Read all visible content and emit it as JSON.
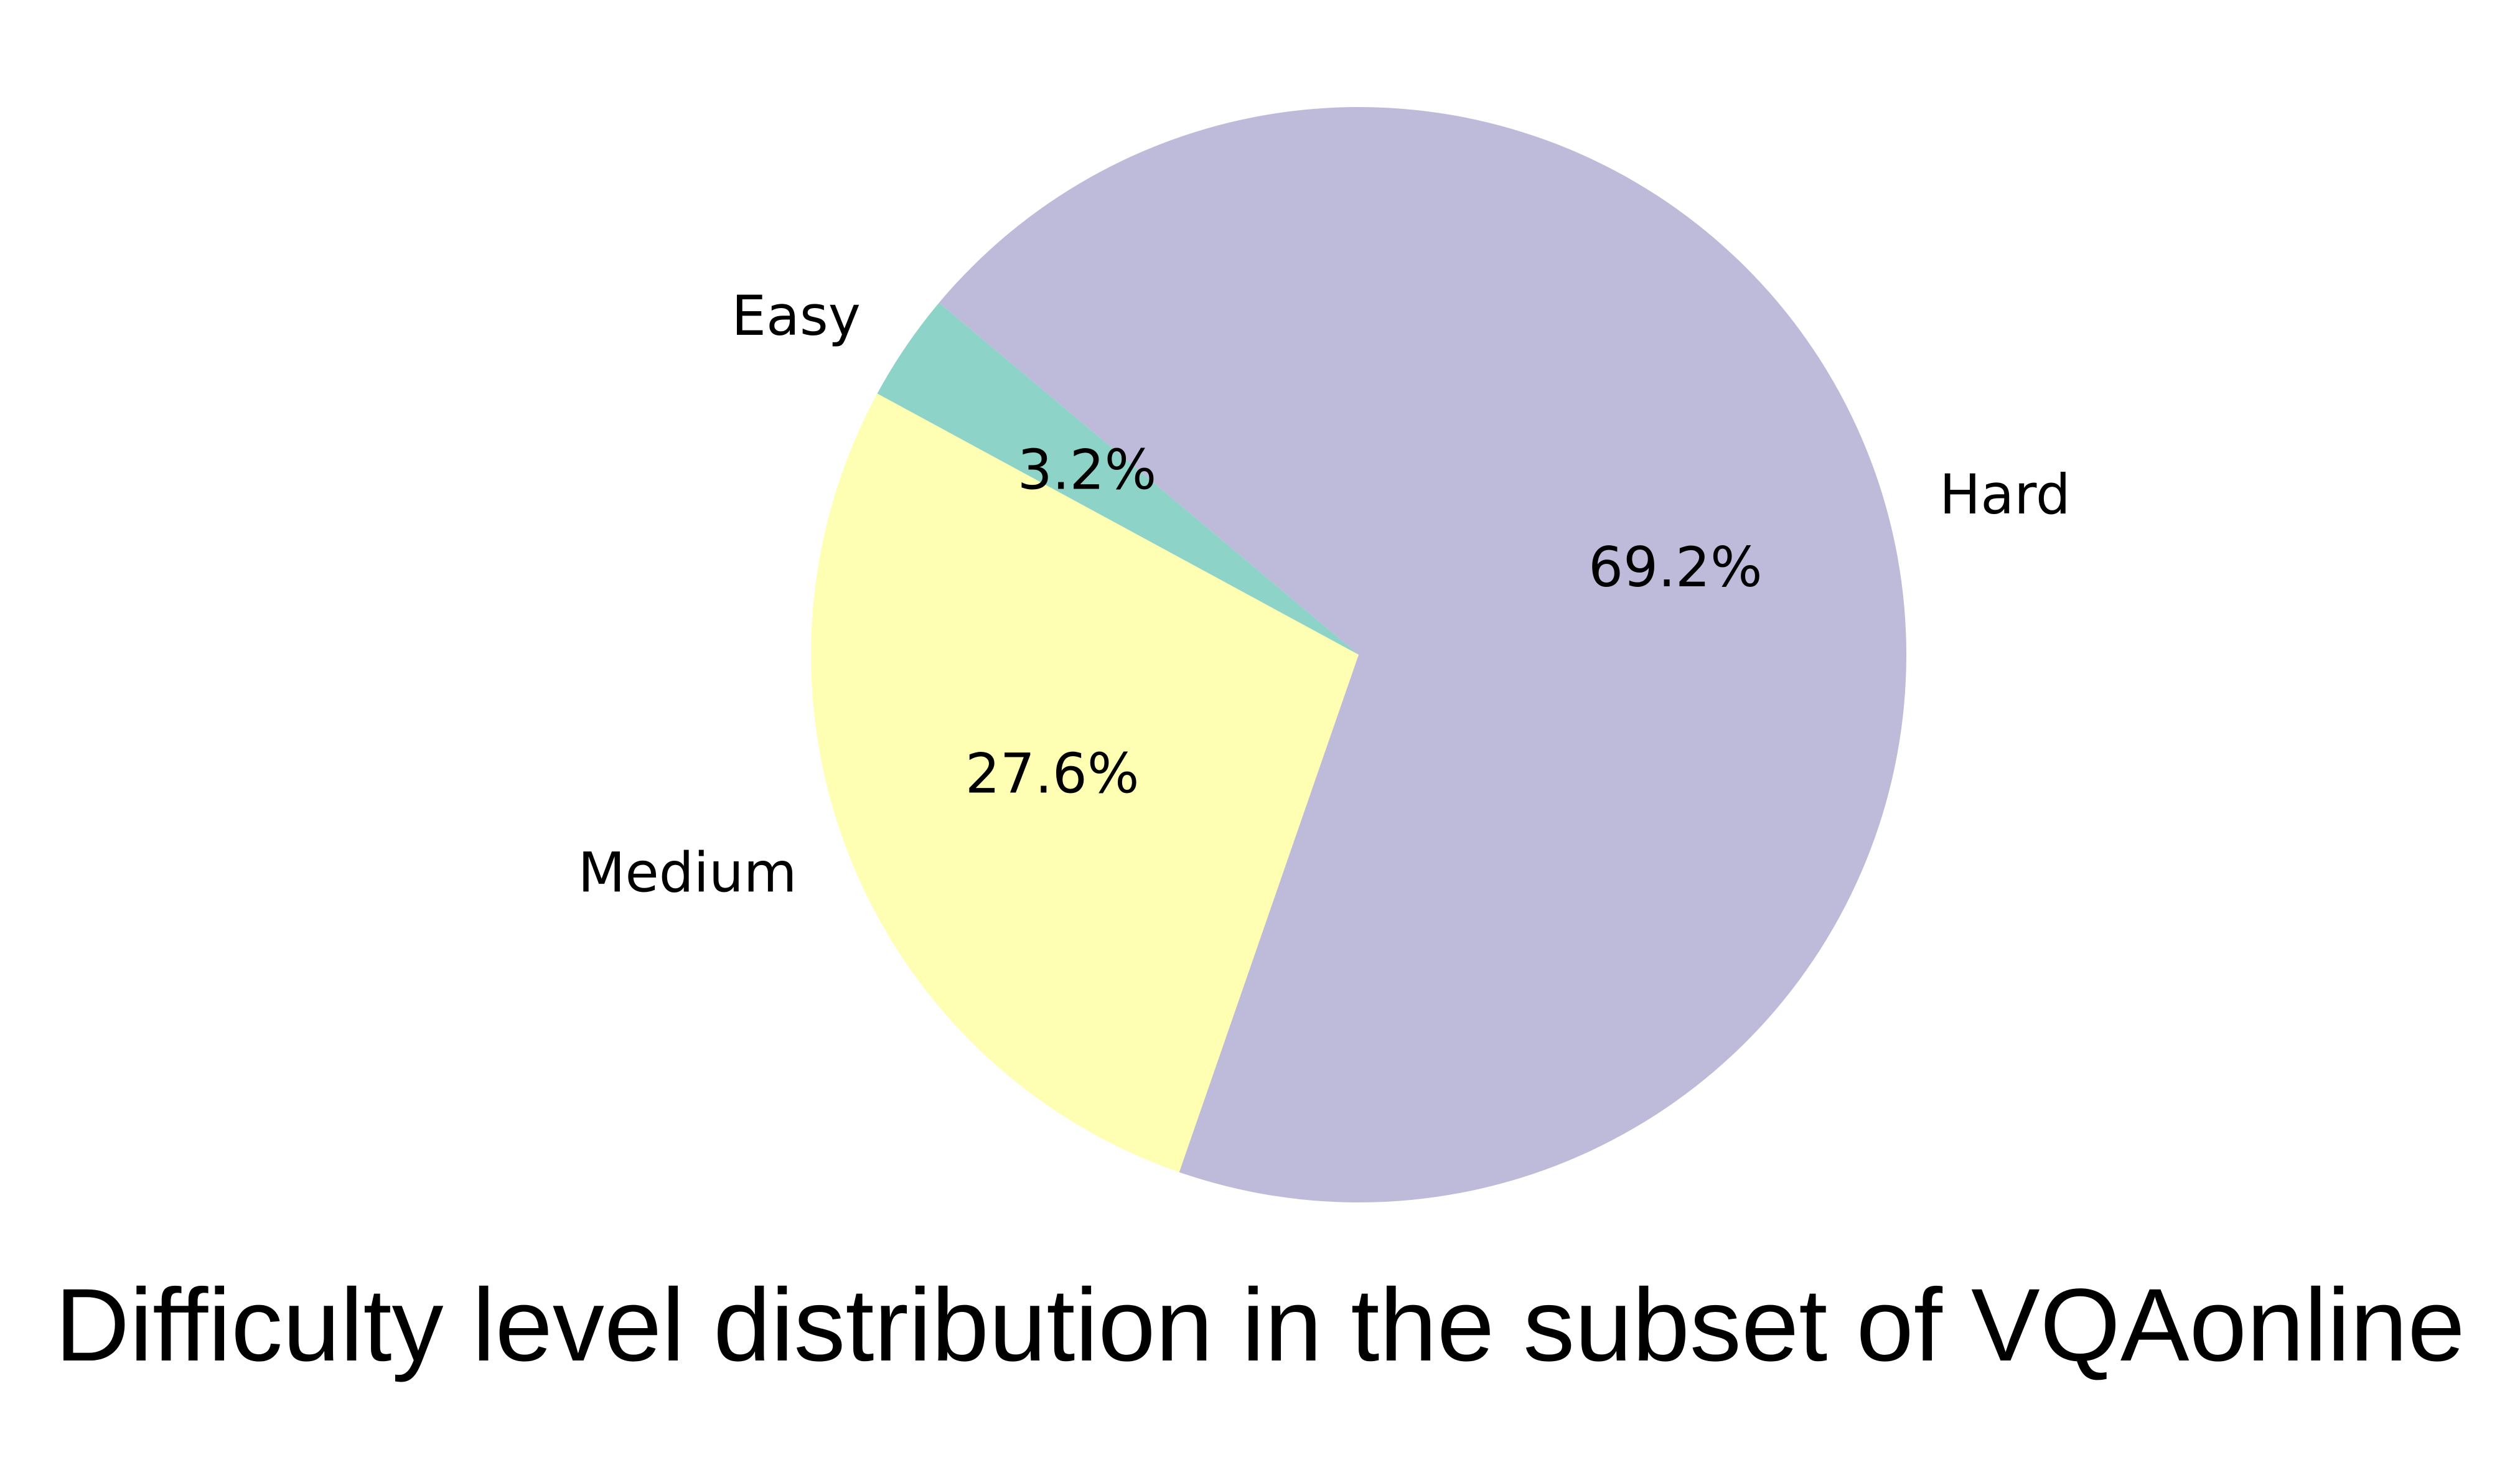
{
  "chart_data": {
    "type": "pie",
    "title": "Difficulty level distribution in the subset of VQAonline",
    "slices": [
      {
        "label": "Easy",
        "value": 3.2,
        "pct_label": "3.2%",
        "color": "#8dd3c7"
      },
      {
        "label": "Medium",
        "value": 27.6,
        "pct_label": "27.6%",
        "color": "#ffffb3"
      },
      {
        "label": "Hard",
        "value": 69.2,
        "pct_label": "69.2%",
        "color": "#bebada"
      }
    ],
    "legend": "none"
  }
}
